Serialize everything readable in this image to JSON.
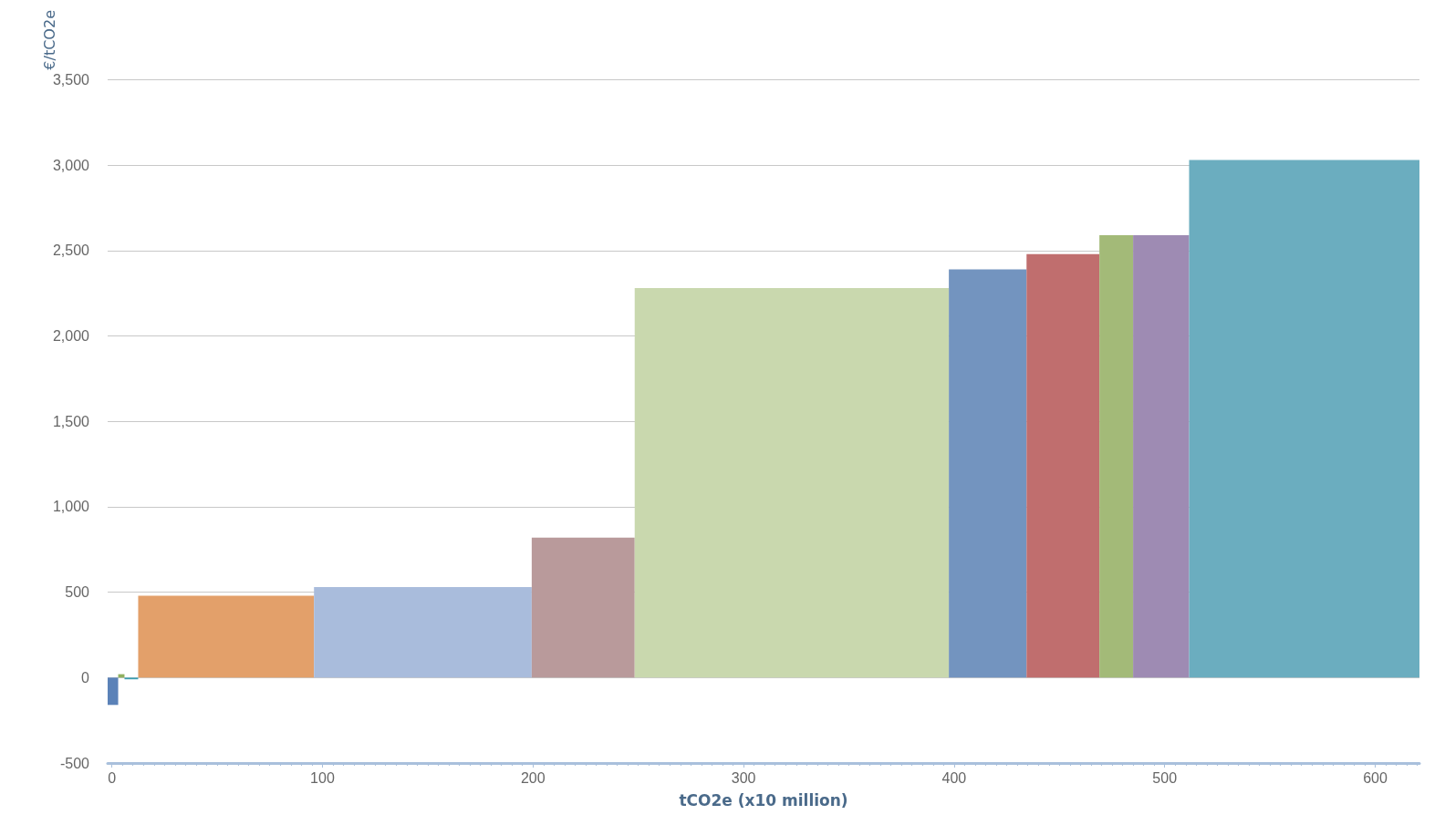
{
  "chart_data": {
    "type": "histogram",
    "xlabel": "tCO2e (x10 million)",
    "ylabel": "€/tCO2e",
    "bins": [
      -2,
      3,
      6,
      12.5,
      96,
      199.4,
      248.3,
      397.5,
      434.4,
      469,
      485,
      511.6,
      621
    ],
    "values": [
      -160,
      20,
      -10,
      480,
      530,
      820,
      2280,
      2390,
      2480,
      2590,
      2590,
      3030
    ],
    "colors": [
      "#5b82b8",
      "#8fb060",
      "#3f9fb2",
      "#e3a06a",
      "#a9bcdc",
      "#b99a9b",
      "#c9d8ae",
      "#7394bf",
      "#c06e6e",
      "#a3ba78",
      "#9e8bb3",
      "#6badbf"
    ],
    "xlim": [
      -2,
      621
    ],
    "xticks": [
      0,
      100,
      200,
      300,
      400,
      500,
      600
    ],
    "ylim": [
      -500,
      3500
    ],
    "yticks": [
      {
        "value": -500,
        "label": "-500"
      },
      0,
      500,
      {
        "value": 1000,
        "label": "1,000"
      },
      {
        "value": 1500,
        "label": "1,500"
      },
      {
        "value": 2000,
        "label": "2,000"
      },
      {
        "value": 2500,
        "label": "2,500"
      },
      {
        "value": 3000,
        "label": "3,000"
      },
      {
        "value": 3500,
        "label": "3,500"
      }
    ],
    "grid": "y"
  }
}
